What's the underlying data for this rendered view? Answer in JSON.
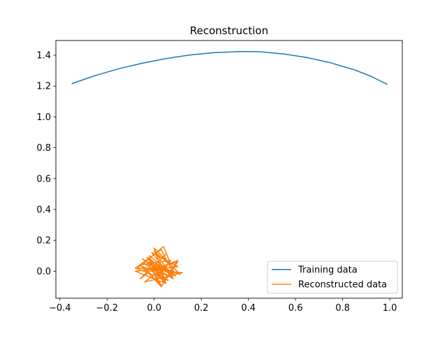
{
  "chart_data": {
    "type": "line",
    "title": "Reconstruction",
    "xlabel": "",
    "ylabel": "",
    "xlim": [
      -0.417,
      1.053
    ],
    "ylim": [
      -0.175,
      1.495
    ],
    "x_ticks": [
      -0.4,
      -0.2,
      0.0,
      0.2,
      0.4,
      0.6,
      0.8,
      1.0
    ],
    "x_tick_labels": [
      "−0.4",
      "−0.2",
      "0.0",
      "0.2",
      "0.4",
      "0.6",
      "0.8",
      "1.0"
    ],
    "y_ticks": [
      0.0,
      0.2,
      0.4,
      0.6,
      0.8,
      1.0,
      1.2,
      1.4
    ],
    "y_tick_labels": [
      "0.0",
      "0.2",
      "0.4",
      "0.6",
      "0.8",
      "1.0",
      "1.2",
      "1.4"
    ],
    "grid": false,
    "legend_position": "bottom-right",
    "series": [
      {
        "name": "Training data",
        "color": "#1f77b4",
        "x": [
          -0.35,
          -0.25,
          -0.15,
          -0.05,
          0.05,
          0.15,
          0.25,
          0.37,
          0.45,
          0.55,
          0.65,
          0.75,
          0.85,
          0.92,
          0.99
        ],
        "y": [
          1.215,
          1.268,
          1.312,
          1.348,
          1.378,
          1.401,
          1.416,
          1.424,
          1.422,
          1.408,
          1.384,
          1.35,
          1.305,
          1.263,
          1.21
        ]
      },
      {
        "name": "Reconstructed data",
        "color": "#ff7f0e",
        "x": [
          0.02,
          -0.05,
          0.08,
          -0.01,
          0.1,
          -0.08,
          0.05,
          0.0,
          0.11,
          -0.03,
          0.03,
          -0.06,
          0.07,
          0.01,
          -0.02,
          0.09,
          0.04,
          -0.07,
          0.12,
          -0.04,
          0.06,
          0.0,
          0.08,
          -0.05,
          0.03,
          0.1,
          -0.02,
          0.05,
          -0.06,
          0.02,
          0.07,
          -0.03,
          0.04,
          0.1,
          -0.01,
          0.06,
          -0.08,
          0.03,
          0.08,
          -0.04,
          0.05,
          0.0,
          0.09,
          -0.02,
          0.04,
          0.02
        ],
        "y": [
          0.0,
          0.08,
          -0.05,
          0.12,
          0.03,
          0.0,
          -0.08,
          0.15,
          -0.02,
          0.06,
          -0.09,
          0.04,
          0.07,
          -0.06,
          0.1,
          -0.03,
          0.16,
          0.02,
          -0.01,
          -0.07,
          0.05,
          0.13,
          -0.04,
          0.03,
          -0.1,
          0.06,
          0.01,
          0.11,
          -0.05,
          0.04,
          -0.02,
          0.09,
          -0.07,
          0.07,
          0.0,
          -0.06,
          0.02,
          0.14,
          -0.01,
          0.05,
          -0.08,
          0.03,
          -0.03,
          0.08,
          -0.04,
          0.02
        ]
      }
    ]
  }
}
